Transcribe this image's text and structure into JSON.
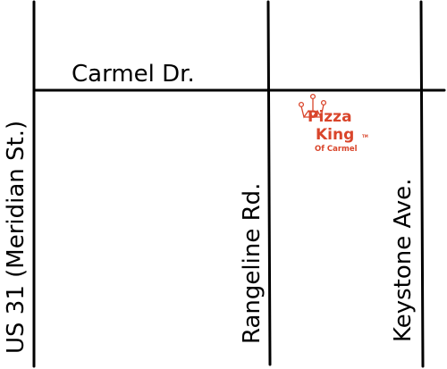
{
  "map": {
    "streets": {
      "carmel": "Carmel Dr.",
      "us31": "US 31 (Meridian St.)",
      "rangeline": "Rangeline Rd.",
      "keystone": "Keystone Ave."
    },
    "logo": {
      "line1": "Pizza",
      "line2": "King",
      "line3": "Of Carmel",
      "tm": "TM",
      "color": "#d9452b"
    },
    "line_color": "#000000"
  }
}
